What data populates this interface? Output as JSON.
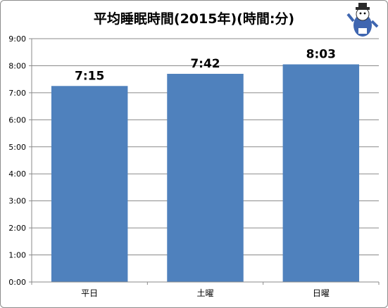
{
  "chart_data": {
    "type": "bar",
    "title": "平均睡眠時間(2015年)(時間:分)",
    "categories": [
      "平日",
      "土曜",
      "日曜"
    ],
    "values": [
      7.25,
      7.7,
      8.05
    ],
    "data_labels": [
      "7:15",
      "7:42",
      "8:03"
    ],
    "ylim": [
      0,
      9
    ],
    "yticks": [
      "0:00",
      "1:00",
      "2:00",
      "3:00",
      "4:00",
      "5:00",
      "6:00",
      "7:00",
      "8:00",
      "9:00"
    ],
    "grid": true,
    "legend": "none",
    "bar_color": "#4f81bd"
  }
}
